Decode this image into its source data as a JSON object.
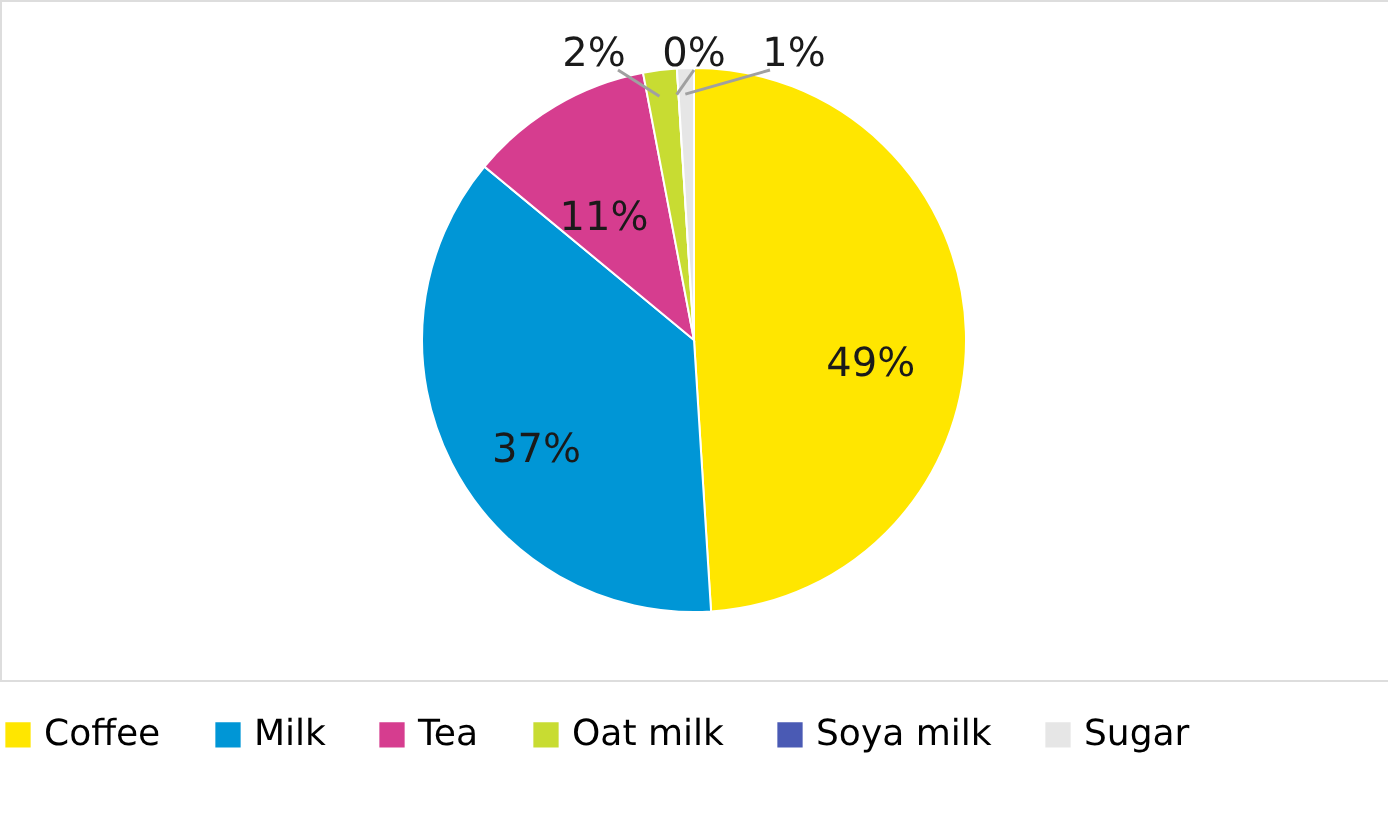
{
  "chart_data": {
    "type": "pie",
    "categories": [
      "Coffee",
      "Milk",
      "Tea",
      "Oat milk",
      "Soya milk",
      "Sugar"
    ],
    "values": [
      49,
      37,
      11,
      2,
      0,
      1
    ],
    "colors": [
      "#ffe600",
      "#0096d6",
      "#d63d8f",
      "#c8dc32",
      "#4a5ab4",
      "#e6e6e6"
    ],
    "value_labels": [
      "49%",
      "37%",
      "11%",
      "2%",
      "0%",
      "1%"
    ],
    "legend": "bottom"
  }
}
